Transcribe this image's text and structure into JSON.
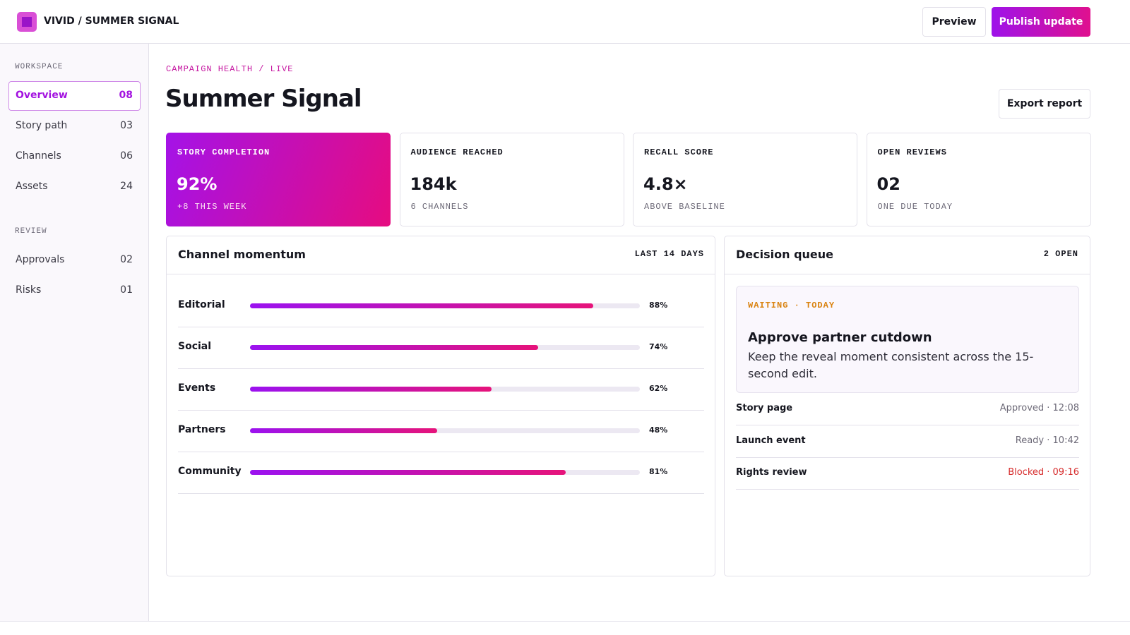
{
  "header": {
    "brand": "VIVID / SUMMER SIGNAL",
    "preview": "Preview",
    "publish": "Publish update"
  },
  "sidebar": {
    "groups": [
      {
        "title": "WORKSPACE",
        "items": [
          {
            "label": "Overview",
            "count": "08"
          },
          {
            "label": "Story path",
            "count": "03"
          },
          {
            "label": "Channels",
            "count": "06"
          },
          {
            "label": "Assets",
            "count": "24"
          }
        ]
      },
      {
        "title": "REVIEW",
        "items": [
          {
            "label": "Approvals",
            "count": "02"
          },
          {
            "label": "Risks",
            "count": "01"
          }
        ]
      }
    ]
  },
  "page": {
    "eyebrow": "CAMPAIGN HEALTH / LIVE",
    "title": "Summer Signal",
    "export": "Export report"
  },
  "stats": [
    {
      "label": "STORY COMPLETION",
      "value": "92%",
      "note": "+8 THIS WEEK"
    },
    {
      "label": "AUDIENCE REACHED",
      "value": "184k",
      "note": "6 CHANNELS"
    },
    {
      "label": "RECALL SCORE",
      "value": "4.8×",
      "note": "ABOVE BASELINE"
    },
    {
      "label": "OPEN REVIEWS",
      "value": "02",
      "note": "ONE DUE TODAY"
    }
  ],
  "momentum": {
    "title": "Channel momentum",
    "period": "LAST 14 DAYS",
    "xlim": [
      0,
      100
    ],
    "categories": [
      "Editorial",
      "Social",
      "Events",
      "Partners",
      "Community"
    ],
    "values": [
      88,
      74,
      62,
      48,
      81
    ],
    "value_labels": [
      "88%",
      "74%",
      "62%",
      "48%",
      "81%"
    ]
  },
  "decision": {
    "title": "Decision queue",
    "count": "2 OPEN",
    "card": {
      "tag": "WAITING · TODAY",
      "title": "Approve partner cutdown",
      "text": "Keep the reveal moment consistent across the 15-second edit."
    },
    "items": [
      {
        "name": "Story page",
        "status": "Approved · 12:08"
      },
      {
        "name": "Launch event",
        "status": "Ready · 10:42"
      },
      {
        "name": "Rights review",
        "status": "Blocked · 09:16"
      }
    ]
  }
}
